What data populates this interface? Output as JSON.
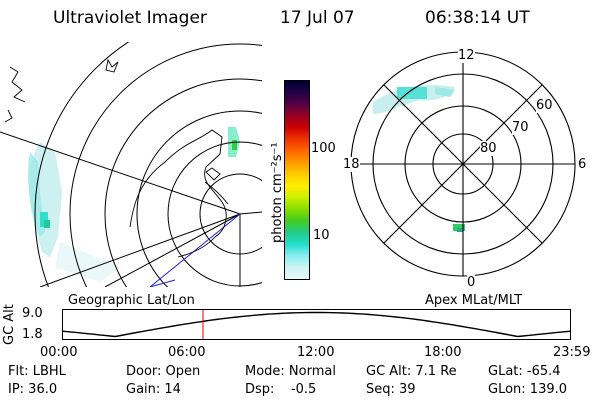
{
  "header": {
    "title": "Ultraviolet Imager",
    "date": "17 Jul 07",
    "time": "06:38:14 UT"
  },
  "colorbar": {
    "label": "photon cm⁻²s⁻¹",
    "ticks": [
      "100",
      "10"
    ],
    "colors": [
      "#000033",
      "#220044",
      "#550044",
      "#990022",
      "#cc0000",
      "#ee3300",
      "#ff6600",
      "#ff9900",
      "#ffcc00",
      "#ffee00",
      "#ccee00",
      "#88dd00",
      "#44cc22",
      "#22cc88",
      "#22ddcc",
      "#88eeee",
      "#ccf4f4",
      "#e8f8f8"
    ]
  },
  "geo_panel": {
    "label": "Geographic Lat/Lon"
  },
  "polar_panel": {
    "label": "Apex MLat/MLT",
    "mlt_labels": {
      "top": "12",
      "left": "18",
      "right": "6",
      "bottom": "0"
    },
    "lat_labels": [
      "60",
      "70",
      "80"
    ]
  },
  "altitude_plot": {
    "ylabel": "GC Alt",
    "yticks": [
      "9.0",
      "1.8"
    ],
    "xticks": [
      "00:00",
      "06:00",
      "12:00",
      "18:00",
      "23:59"
    ],
    "current_time_hours": 6.64
  },
  "info": {
    "filter": "Flt: LBHL",
    "ip": "IP: 36.0",
    "door": "Door: Open",
    "gain": "Gain: 14",
    "mode": "Mode: Normal",
    "dsp": "Dsp:    -0.5",
    "gc_alt": "GC Alt: 7.1 Re",
    "seq": "Seq: 39",
    "glat": "GLat: -65.4",
    "glon": "GLon: 139.0"
  }
}
